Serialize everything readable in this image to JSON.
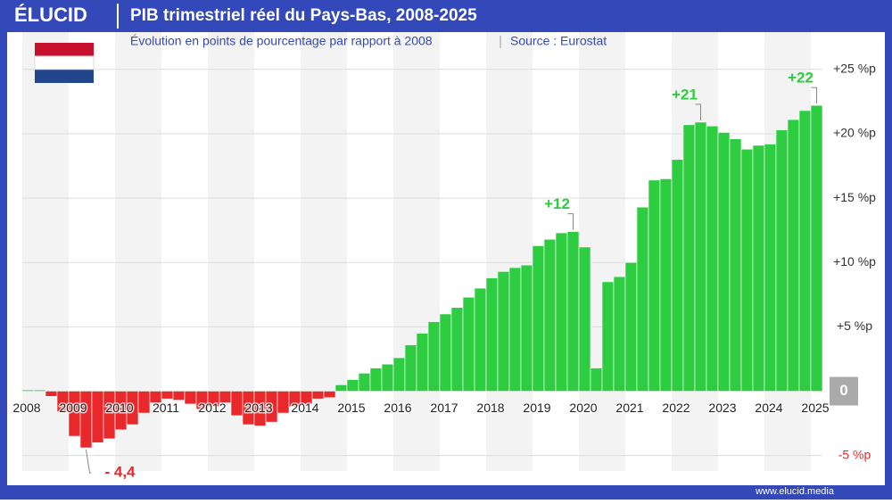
{
  "brand": "ÉLUCID",
  "footer": "www.elucid.media",
  "chart_data": {
    "type": "bar",
    "title": "PIB trimestriel réel du Pays-Bas, 2008-2025",
    "subtitle": "Évolution en points de pourcentage par rapport à 2008",
    "source": "Source : Eurostat",
    "categories": [
      "2008",
      null,
      null,
      null,
      "2009",
      null,
      null,
      null,
      "2010",
      null,
      null,
      null,
      "2011",
      null,
      null,
      null,
      "2012",
      null,
      null,
      null,
      "2013",
      null,
      null,
      null,
      "2014",
      null,
      null,
      null,
      "2015",
      null,
      null,
      null,
      "2016",
      null,
      null,
      null,
      "2017",
      null,
      null,
      null,
      "2018",
      null,
      null,
      null,
      "2019",
      null,
      null,
      null,
      "2020",
      null,
      null,
      null,
      "2021",
      null,
      null,
      null,
      "2022",
      null,
      null,
      null,
      "2023",
      null,
      null,
      null,
      "2024",
      null,
      null,
      null,
      "2025"
    ],
    "values": [
      0.1,
      0.1,
      -0.4,
      -1.6,
      -3.5,
      -4.4,
      -4.0,
      -3.7,
      -3.0,
      -2.6,
      -1.7,
      -0.9,
      -0.6,
      -0.7,
      -1.0,
      -1.4,
      -1.2,
      -0.9,
      -1.9,
      -2.6,
      -2.7,
      -2.4,
      -1.7,
      -1.2,
      -1.0,
      -0.6,
      -0.5,
      0.5,
      0.9,
      1.4,
      1.8,
      2.1,
      2.6,
      3.6,
      4.5,
      5.4,
      6.0,
      6.5,
      7.3,
      8.0,
      8.8,
      9.3,
      9.6,
      9.8,
      11.3,
      11.8,
      12.3,
      12.4,
      11.2,
      1.8,
      8.5,
      8.9,
      10.0,
      14.3,
      16.4,
      16.5,
      18.0,
      20.7,
      20.9,
      20.6,
      20.1,
      19.6,
      18.8,
      19.1,
      19.2,
      20.3,
      21.1,
      21.8,
      22.2
    ],
    "value_labels": [
      null,
      null,
      null,
      null,
      null,
      "- 4,4",
      null,
      null,
      null,
      null,
      null,
      null,
      null,
      null,
      null,
      null,
      null,
      null,
      null,
      null,
      null,
      null,
      null,
      null,
      null,
      null,
      null,
      null,
      null,
      null,
      null,
      null,
      null,
      null,
      null,
      null,
      null,
      null,
      null,
      null,
      null,
      null,
      null,
      null,
      null,
      null,
      null,
      "+12",
      null,
      null,
      null,
      null,
      null,
      null,
      null,
      null,
      null,
      null,
      "+21",
      null,
      null,
      null,
      null,
      null,
      null,
      null,
      null,
      null,
      "+22"
    ],
    "positive_color": "#2ecc40",
    "negative_color": "#e8282b",
    "ylim": [
      -6.2,
      25.4
    ],
    "yticks": [
      {
        "value": -5,
        "label": "-5 %p"
      },
      0,
      {
        "value": 5,
        "label": "+5 %p"
      },
      {
        "value": 10,
        "label": "+10 %p"
      },
      {
        "value": 15,
        "label": "+15 %p"
      },
      {
        "value": 20,
        "label": "+20 %p"
      },
      {
        "value": 25,
        "label": "+25 %p"
      }
    ],
    "grid": true
  }
}
